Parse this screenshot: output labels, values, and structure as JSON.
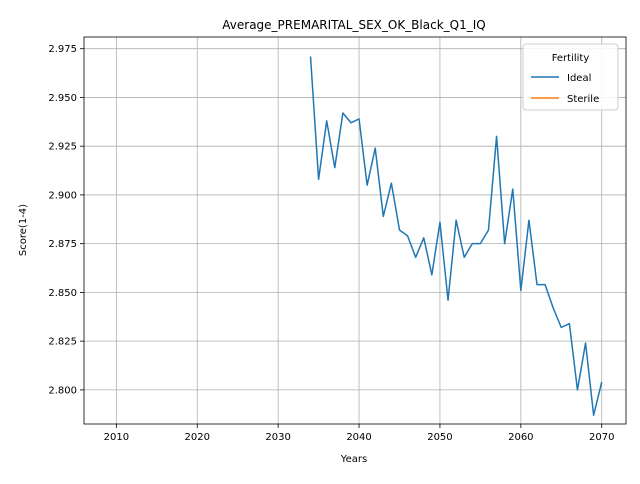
{
  "chart_data": {
    "type": "line",
    "title": "Average_PREMARITAL_SEX_OK_Black_Q1_IQ",
    "xlabel": "Years",
    "ylabel": "Score(1-4)",
    "xlim": [
      2006,
      2073
    ],
    "ylim": [
      2.7825,
      2.981
    ],
    "xticks": [
      2010,
      2020,
      2030,
      2040,
      2050,
      2060,
      2070
    ],
    "yticks": [
      2.8,
      2.825,
      2.85,
      2.875,
      2.9,
      2.925,
      2.95,
      2.975
    ],
    "xtick_labels": [
      "2010",
      "2020",
      "2030",
      "2040",
      "2050",
      "2060",
      "2070"
    ],
    "ytick_labels": [
      "2.800",
      "2.825",
      "2.850",
      "2.875",
      "2.900",
      "2.925",
      "2.950",
      "2.975"
    ],
    "grid": true,
    "legend": {
      "title": "Fertility",
      "placement": "top-right"
    },
    "series": [
      {
        "name": "Ideal",
        "color": "#1f77b4",
        "x": [
          2034,
          2035,
          2036,
          2037,
          2038,
          2039,
          2040,
          2041,
          2042,
          2043,
          2044,
          2045,
          2046,
          2047,
          2048,
          2049,
          2050,
          2051,
          2052,
          2053,
          2054,
          2055,
          2056,
          2057,
          2058,
          2059,
          2060,
          2061,
          2062,
          2063,
          2064,
          2065,
          2066,
          2067,
          2068,
          2069,
          2070
        ],
        "y": [
          2.971,
          2.908,
          2.938,
          2.914,
          2.942,
          2.937,
          2.939,
          2.905,
          2.924,
          2.889,
          2.906,
          2.882,
          2.879,
          2.868,
          2.878,
          2.859,
          2.886,
          2.846,
          2.887,
          2.868,
          2.875,
          2.875,
          2.882,
          2.93,
          2.875,
          2.903,
          2.851,
          2.887,
          2.854,
          2.854,
          2.842,
          2.832,
          2.834,
          2.8,
          2.824,
          2.787,
          2.804
        ]
      },
      {
        "name": "Sterile",
        "color": "#ff7f0e",
        "x": [],
        "y": []
      }
    ]
  }
}
